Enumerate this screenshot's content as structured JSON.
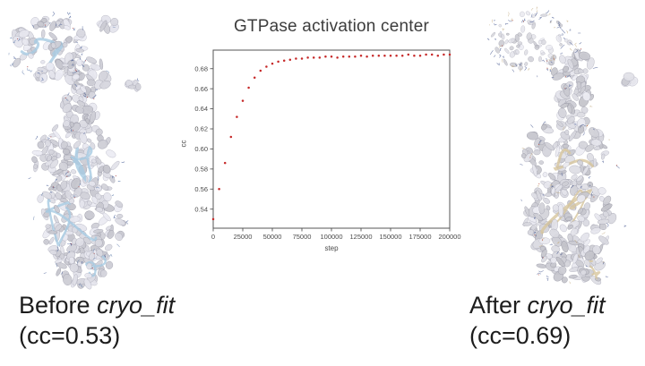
{
  "page": {
    "background": "#ffffff"
  },
  "before": {
    "caption_prefix": "Before ",
    "caption_italic": "cryo_fit",
    "caption_line2": "(cc=0.53)",
    "image": {
      "kind": "cryo-em-density-map-with-blue-ribbon-model",
      "colors": {
        "surface": "#d6d6db",
        "ribbon": "#a6cbe2",
        "stick": "#38508e",
        "stick2": "#5a77a8",
        "accent": "#a03030"
      }
    }
  },
  "after": {
    "caption_prefix": "After ",
    "caption_italic": "cryo_fit",
    "caption_line2": "(cc=0.69)",
    "image": {
      "kind": "cryo-em-density-map-with-tan-ribbon-model",
      "colors": {
        "surface": "#d6d6da",
        "ribbon": "#d7c69c",
        "stick": "#3c4f8a",
        "stick2": "#c0a87e",
        "accent": "#b04028"
      }
    }
  },
  "chart_data": {
    "type": "scatter",
    "title": "GTPase activation center",
    "xlabel": "step",
    "ylabel": "cc",
    "xlim": [
      0,
      200000
    ],
    "ylim": [
      0.521,
      0.6985
    ],
    "xticks": [
      0,
      25000,
      50000,
      75000,
      100000,
      125000,
      150000,
      175000,
      200000
    ],
    "yticks": [
      0.54,
      0.56,
      0.58,
      0.6,
      0.62,
      0.64,
      0.66,
      0.68
    ],
    "grid": false,
    "legend": null,
    "marker_color": "#c62828",
    "axis_color": "#555555",
    "tick_label_color": "#4a4a4a",
    "x": [
      0,
      5000,
      10000,
      15000,
      20000,
      25000,
      30000,
      35000,
      40000,
      45000,
      50000,
      55000,
      60000,
      65000,
      70000,
      75000,
      80000,
      85000,
      90000,
      95000,
      100000,
      105000,
      110000,
      115000,
      120000,
      125000,
      130000,
      135000,
      140000,
      145000,
      150000,
      155000,
      160000,
      165000,
      170000,
      175000,
      180000,
      185000,
      190000,
      195000,
      200000
    ],
    "y": [
      0.53,
      0.56,
      0.586,
      0.612,
      0.632,
      0.648,
      0.661,
      0.671,
      0.678,
      0.682,
      0.685,
      0.687,
      0.688,
      0.689,
      0.69,
      0.69,
      0.691,
      0.691,
      0.691,
      0.692,
      0.692,
      0.691,
      0.692,
      0.692,
      0.692,
      0.693,
      0.692,
      0.693,
      0.693,
      0.693,
      0.693,
      0.693,
      0.693,
      0.694,
      0.693,
      0.693,
      0.694,
      0.694,
      0.693,
      0.694,
      0.694
    ]
  }
}
